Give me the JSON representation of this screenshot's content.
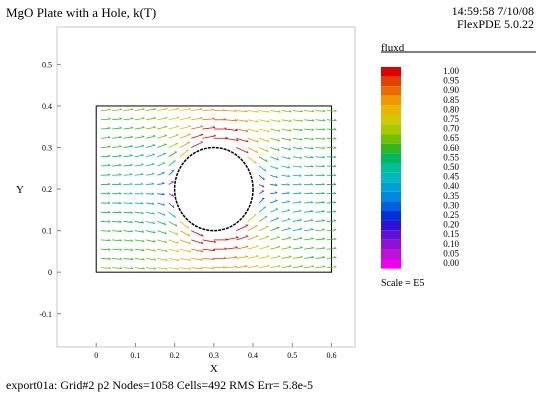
{
  "header": {
    "title": "MgO Plate with a Hole, k(T)",
    "time_stamp": "14:59:58 7/10/08",
    "version": "FlexPDE 5.0.22"
  },
  "footer": {
    "status": "export01a:  Grid#2  p2  Nodes=1058 Cells=492 RMS Err= 5.8e-5"
  },
  "chart_data": {
    "type": "vector field",
    "title": "MgO Plate with a Hole, k(T)",
    "xlabel": "X",
    "ylabel": "Y",
    "xlim": [
      -0.1,
      0.66
    ],
    "ylim": [
      -0.18,
      0.59
    ],
    "x_ticks": [
      "0",
      "0.1",
      "0.2",
      "0.3",
      "0.4",
      "0.5",
      "0.6"
    ],
    "y_ticks": [
      "-0.1",
      "0",
      "0.1",
      "0.2",
      "0.3",
      "0.4",
      "0.5"
    ],
    "grid": false,
    "domain": {
      "plate": {
        "x": [
          0,
          0.6
        ],
        "y": [
          0,
          0.4
        ]
      },
      "hole": {
        "center": [
          0.3,
          0.2
        ],
        "radius": 0.1
      }
    },
    "field_name": "fluxd",
    "legend": {
      "title": "fluxd",
      "placement": "right",
      "levels": [
        "1.00",
        "0.95",
        "0.90",
        "0.85",
        "0.80",
        "0.75",
        "0.70",
        "0.65",
        "0.60",
        "0.55",
        "0.50",
        "0.45",
        "0.40",
        "0.35",
        "0.30",
        "0.25",
        "0.20",
        "0.15",
        "0.10",
        "0.05",
        "0.00"
      ],
      "colors": [
        "#e00000",
        "#e04000",
        "#e86c00",
        "#f09800",
        "#e8b800",
        "#d0c800",
        "#a8c800",
        "#70c000",
        "#30b820",
        "#00b860",
        "#00c098",
        "#00b8c0",
        "#00a0d8",
        "#0088e0",
        "#0060e0",
        "#0030d8",
        "#3010d8",
        "#6010d8",
        "#9010d8",
        "#c010d8",
        "#f000f0"
      ],
      "scale_note": "Scale = E5"
    }
  }
}
